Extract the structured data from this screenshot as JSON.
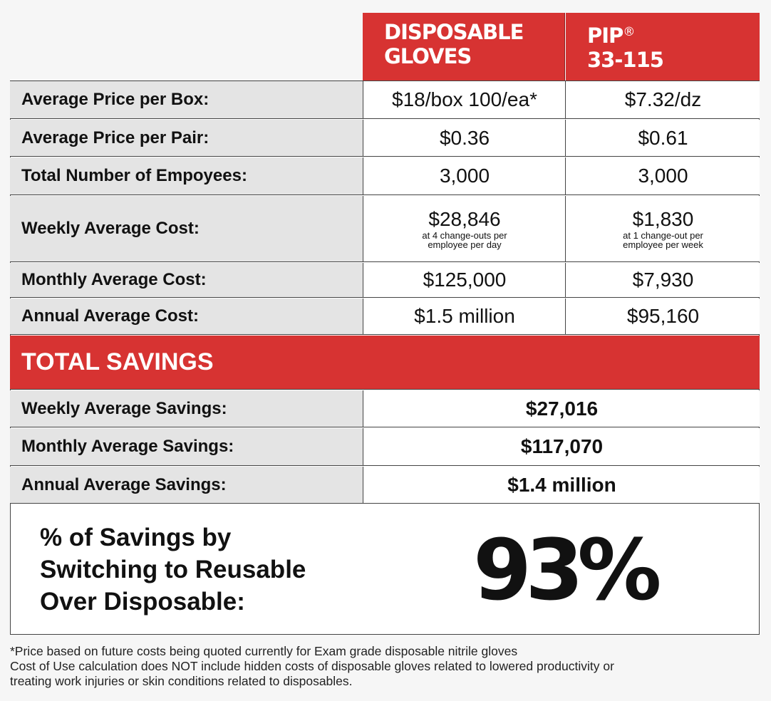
{
  "header": {
    "col1_line1": "DISPOSABLE",
    "col1_line2": "GLOVES",
    "col2_line1": "PIP",
    "col2_reg": "®",
    "col2_line2": "33-115"
  },
  "rows": [
    {
      "label": "Average Price per Box:",
      "disposable": "$18/box 100/ea*",
      "pip": "$7.32/dz"
    },
    {
      "label": "Average Price per Pair:",
      "disposable": "$0.36",
      "pip": "$0.61"
    },
    {
      "label": "Total Number of Empoyees:",
      "disposable": "3,000",
      "pip": "3,000"
    },
    {
      "label": "Weekly Average Cost:",
      "disposable": "$28,846",
      "disposable_note_1": "at 4 change-outs per",
      "disposable_note_2": "employee per day",
      "pip": "$1,830",
      "pip_note_1": "at 1 change-out per",
      "pip_note_2": "employee per week"
    },
    {
      "label": "Monthly Average Cost:",
      "disposable": "$125,000",
      "pip": "$7,930"
    },
    {
      "label": "Annual Average Cost:",
      "disposable": "$1.5 million",
      "pip": "$95,160"
    }
  ],
  "total_savings": {
    "title": "TOTAL SAVINGS",
    "rows": [
      {
        "label": "Weekly Average Savings:",
        "value": "$27,016"
      },
      {
        "label": "Monthly Average Savings:",
        "value": "$117,070"
      },
      {
        "label": "Annual Average Savings:",
        "value": "$1.4 million"
      }
    ]
  },
  "percent_savings": {
    "label_line1": "% of Savings by",
    "label_line2": "Switching to Reusable",
    "label_line3": "Over Disposable:",
    "value": "93%"
  },
  "footnotes": {
    "line1": "*Price based on future costs being quoted currently for Exam grade disposable nitrile gloves",
    "line2": "Cost of Use calculation does NOT include hidden costs of disposable gloves related to lowered productivity or",
    "line3": "treating work injuries or skin conditions related to disposables."
  },
  "colors": {
    "accent_red": "#d73332",
    "label_bg": "#e4e4e4",
    "page_bg": "#f6f6f6",
    "border": "#444444"
  }
}
